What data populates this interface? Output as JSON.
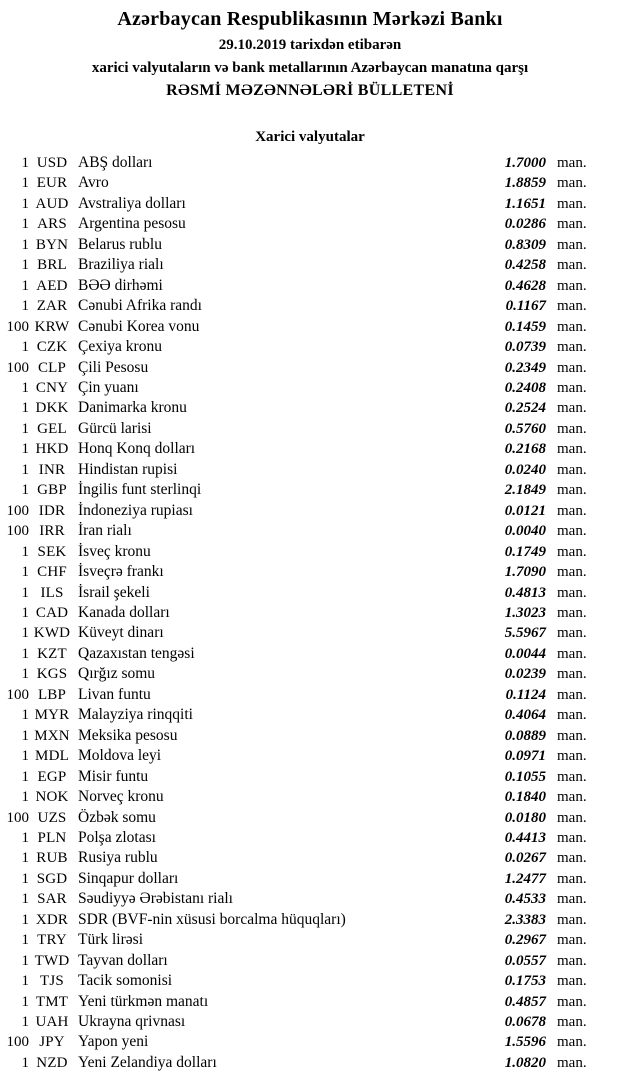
{
  "colors": {
    "background": "#ffffff",
    "text": "#000000"
  },
  "header": {
    "title": "Azərbaycan Respublikasının Mərkəzi Bankı",
    "date_line": "29.10.2019 tarixdən etibarən",
    "subtitle_line": "xarici valyutaların və bank metallarının Azərbaycan manatına qarşı",
    "bulletin_line": "RƏSMİ MƏZƏNNƏLƏRİ BÜLLETENİ"
  },
  "section": {
    "title": "Xarici valyutalar"
  },
  "unit_label": "man.",
  "rates": [
    {
      "qty": "1",
      "code": "USD",
      "name": "ABŞ dolları",
      "rate": "1.7000"
    },
    {
      "qty": "1",
      "code": "EUR",
      "name": "Avro",
      "rate": "1.8859"
    },
    {
      "qty": "1",
      "code": "AUD",
      "name": "Avstraliya dolları",
      "rate": "1.1651"
    },
    {
      "qty": "1",
      "code": "ARS",
      "name": "Argentina pesosu",
      "rate": "0.0286"
    },
    {
      "qty": "1",
      "code": "BYN",
      "name": "Belarus rublu",
      "rate": "0.8309"
    },
    {
      "qty": "1",
      "code": "BRL",
      "name": "Braziliya rialı",
      "rate": "0.4258"
    },
    {
      "qty": "1",
      "code": "AED",
      "name": "BƏƏ dirhəmi",
      "rate": "0.4628"
    },
    {
      "qty": "1",
      "code": "ZAR",
      "name": "Cənubi Afrika randı",
      "rate": "0.1167"
    },
    {
      "qty": "100",
      "code": "KRW",
      "name": "Cənubi Korea vonu",
      "rate": "0.1459"
    },
    {
      "qty": "1",
      "code": "CZK",
      "name": "Çexiya kronu",
      "rate": "0.0739"
    },
    {
      "qty": "100",
      "code": "CLP",
      "name": "Çili Pesosu",
      "rate": "0.2349"
    },
    {
      "qty": "1",
      "code": "CNY",
      "name": "Çin yuanı",
      "rate": "0.2408"
    },
    {
      "qty": "1",
      "code": "DKK",
      "name": "Danimarka kronu",
      "rate": "0.2524"
    },
    {
      "qty": "1",
      "code": "GEL",
      "name": "Gürcü larisi",
      "rate": "0.5760"
    },
    {
      "qty": "1",
      "code": "HKD",
      "name": "Honq Konq dolları",
      "rate": "0.2168"
    },
    {
      "qty": "1",
      "code": "INR",
      "name": "Hindistan rupisi",
      "rate": "0.0240"
    },
    {
      "qty": "1",
      "code": "GBP",
      "name": "İngilis funt sterlinqi",
      "rate": "2.1849"
    },
    {
      "qty": "100",
      "code": "IDR",
      "name": "İndoneziya rupiası",
      "rate": "0.0121"
    },
    {
      "qty": "100",
      "code": "IRR",
      "name": "İran rialı",
      "rate": "0.0040"
    },
    {
      "qty": "1",
      "code": "SEK",
      "name": "İsveç kronu",
      "rate": "0.1749"
    },
    {
      "qty": "1",
      "code": "CHF",
      "name": "İsveçrə frankı",
      "rate": "1.7090"
    },
    {
      "qty": "1",
      "code": "ILS",
      "name": "İsrail şekeli",
      "rate": "0.4813"
    },
    {
      "qty": "1",
      "code": "CAD",
      "name": "Kanada dolları",
      "rate": "1.3023"
    },
    {
      "qty": "1",
      "code": "KWD",
      "name": "Küveyt dinarı",
      "rate": "5.5967"
    },
    {
      "qty": "1",
      "code": "KZT",
      "name": "Qazaxıstan tengəsi",
      "rate": "0.0044"
    },
    {
      "qty": "1",
      "code": "KGS",
      "name": "Qırğız somu",
      "rate": "0.0239"
    },
    {
      "qty": "100",
      "code": "LBP",
      "name": "Livan funtu",
      "rate": "0.1124"
    },
    {
      "qty": "1",
      "code": "MYR",
      "name": "Malayziya rinqqiti",
      "rate": "0.4064"
    },
    {
      "qty": "1",
      "code": "MXN",
      "name": "Meksika pesosu",
      "rate": "0.0889"
    },
    {
      "qty": "1",
      "code": "MDL",
      "name": "Moldova leyi",
      "rate": "0.0971"
    },
    {
      "qty": "1",
      "code": "EGP",
      "name": "Misir funtu",
      "rate": "0.1055"
    },
    {
      "qty": "1",
      "code": "NOK",
      "name": "Norveç kronu",
      "rate": "0.1840"
    },
    {
      "qty": "100",
      "code": "UZS",
      "name": "Özbək somu",
      "rate": "0.0180"
    },
    {
      "qty": "1",
      "code": "PLN",
      "name": "Polşa zlotası",
      "rate": "0.4413"
    },
    {
      "qty": "1",
      "code": "RUB",
      "name": "Rusiya rublu",
      "rate": "0.0267"
    },
    {
      "qty": "1",
      "code": "SGD",
      "name": "Sinqapur dolları",
      "rate": "1.2477"
    },
    {
      "qty": "1",
      "code": "SAR",
      "name": "Səudiyyə Ərəbistanı rialı",
      "rate": "0.4533"
    },
    {
      "qty": "1",
      "code": "XDR",
      "name": "SDR (BVF-nin xüsusi borcalma hüquqları)",
      "rate": "2.3383"
    },
    {
      "qty": "1",
      "code": "TRY",
      "name": "Türk lirəsi",
      "rate": "0.2967"
    },
    {
      "qty": "1",
      "code": "TWD",
      "name": "Tayvan dolları",
      "rate": "0.0557"
    },
    {
      "qty": "1",
      "code": "TJS",
      "name": "Tacik somonisi",
      "rate": "0.1753"
    },
    {
      "qty": "1",
      "code": "TMT",
      "name": "Yeni türkmən manatı",
      "rate": "0.4857"
    },
    {
      "qty": "1",
      "code": "UAH",
      "name": "Ukrayna qrivnası",
      "rate": "0.0678"
    },
    {
      "qty": "100",
      "code": "JPY",
      "name": "Yapon yeni",
      "rate": "1.5596"
    },
    {
      "qty": "1",
      "code": "NZD",
      "name": "Yeni Zelandiya dolları",
      "rate": "1.0820"
    }
  ]
}
